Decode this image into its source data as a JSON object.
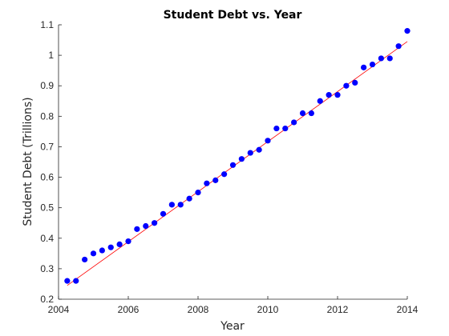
{
  "chart_data": {
    "type": "scatter",
    "title": "Student Debt vs. Year",
    "xlabel": "Year",
    "ylabel": "Student Debt (Trillions)",
    "xlim": [
      2004,
      2014
    ],
    "ylim": [
      0.2,
      1.1
    ],
    "x_ticks": [
      2004,
      2006,
      2008,
      2010,
      2012,
      2014
    ],
    "x_tick_labels": [
      "2004",
      "2006",
      "2008",
      "2010",
      "2012",
      "2014"
    ],
    "y_ticks": [
      0.2,
      0.3,
      0.4,
      0.5,
      0.6,
      0.7,
      0.8,
      0.9,
      1.0,
      1.1
    ],
    "y_tick_labels": [
      "0.2",
      "0.3",
      "0.4",
      "0.5",
      "0.6",
      "0.7",
      "0.8",
      "0.9",
      "1",
      "1.1"
    ],
    "grid": false,
    "series": [
      {
        "kind": "points",
        "color": "#0000ff",
        "x": [
          2004.25,
          2004.5,
          2004.75,
          2005.0,
          2005.25,
          2005.5,
          2005.75,
          2006.0,
          2006.25,
          2006.5,
          2006.75,
          2007.0,
          2007.25,
          2007.5,
          2007.75,
          2008.0,
          2008.25,
          2008.5,
          2008.75,
          2009.0,
          2009.25,
          2009.5,
          2009.75,
          2010.0,
          2010.25,
          2010.5,
          2010.75,
          2011.0,
          2011.25,
          2011.5,
          2011.75,
          2012.0,
          2012.25,
          2012.5,
          2012.75,
          2013.0,
          2013.25,
          2013.5,
          2013.75,
          2014.0
        ],
        "y": [
          0.26,
          0.26,
          0.33,
          0.35,
          0.36,
          0.37,
          0.38,
          0.39,
          0.43,
          0.44,
          0.45,
          0.48,
          0.51,
          0.51,
          0.53,
          0.55,
          0.58,
          0.59,
          0.61,
          0.64,
          0.66,
          0.68,
          0.69,
          0.72,
          0.76,
          0.76,
          0.78,
          0.81,
          0.81,
          0.85,
          0.87,
          0.87,
          0.9,
          0.91,
          0.96,
          0.97,
          0.99,
          0.99,
          1.03,
          1.08
        ]
      },
      {
        "kind": "fit-line",
        "color": "#ff0000",
        "x": [
          2004.25,
          2014.0
        ],
        "y": [
          0.245,
          1.045
        ]
      }
    ]
  }
}
